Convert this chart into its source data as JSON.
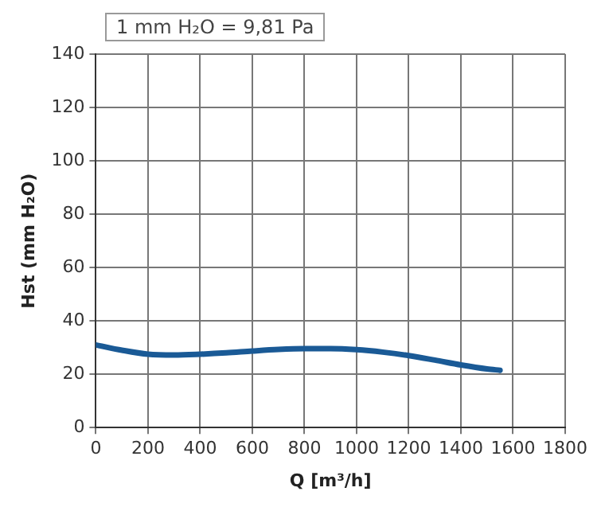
{
  "chart_data": {
    "type": "line",
    "xlabel": "Q [m³/h]",
    "ylabel": "Hst (mm H₂O)",
    "annotations": [
      "1 mm H₂O = 9,81 Pa"
    ],
    "x": [
      0,
      100,
      200,
      300,
      400,
      500,
      600,
      700,
      800,
      900,
      1000,
      1100,
      1200,
      1300,
      1400,
      1500,
      1550
    ],
    "series": [
      {
        "color": "#1a5a96",
        "values": [
          31,
          29,
          27.5,
          27.2,
          27.5,
          28,
          28.7,
          29.3,
          29.6,
          29.6,
          29.2,
          28.3,
          27,
          25.3,
          23.5,
          22,
          21.5
        ]
      }
    ],
    "xlim": [
      0,
      1800
    ],
    "xticks": [
      0,
      200,
      400,
      600,
      800,
      1000,
      1200,
      1400,
      1600,
      1800
    ],
    "ylim": [
      0,
      140
    ],
    "yticks": [
      0,
      20,
      40,
      60,
      80,
      100,
      120,
      140
    ],
    "grid": true,
    "legend": false,
    "marker": "none",
    "line_style": "solid"
  }
}
